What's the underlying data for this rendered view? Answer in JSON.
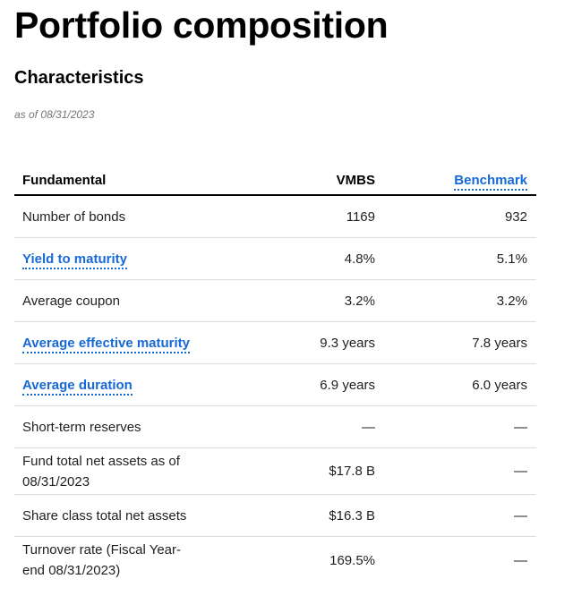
{
  "page": {
    "title": "Portfolio composition",
    "section_title": "Characteristics",
    "as_of": "as of 08/31/2023"
  },
  "table": {
    "headers": {
      "label": "Fundamental",
      "fund": "VMBS",
      "benchmark": "Benchmark"
    },
    "rows": [
      {
        "label": "Number of bonds",
        "fund": "1169",
        "benchmark": "932",
        "is_link": false
      },
      {
        "label": "Yield to maturity",
        "fund": "4.8%",
        "benchmark": "5.1%",
        "is_link": true
      },
      {
        "label": "Average coupon",
        "fund": "3.2%",
        "benchmark": "3.2%",
        "is_link": false
      },
      {
        "label": "Average effective maturity",
        "fund": "9.3 years",
        "benchmark": "7.8 years",
        "is_link": true
      },
      {
        "label": "Average duration",
        "fund": "6.9 years",
        "benchmark": "6.0 years",
        "is_link": true
      },
      {
        "label": "Short-term reserves",
        "fund": "—",
        "benchmark": "—",
        "is_link": false
      },
      {
        "label": "Fund total net assets as of 08/31/2023",
        "fund": "$17.8 B",
        "benchmark": "—",
        "is_link": false
      },
      {
        "label": "Share class total net assets",
        "fund": "$16.3 B",
        "benchmark": "—",
        "is_link": false
      },
      {
        "label": "Turnover rate (Fiscal Year-end 08/31/2023)",
        "fund": "169.5%",
        "benchmark": "—",
        "is_link": false
      }
    ]
  },
  "colors": {
    "link": "#1769d6",
    "divider": "#dcdcdc",
    "header_rule": "#000000",
    "muted": "#757575"
  }
}
